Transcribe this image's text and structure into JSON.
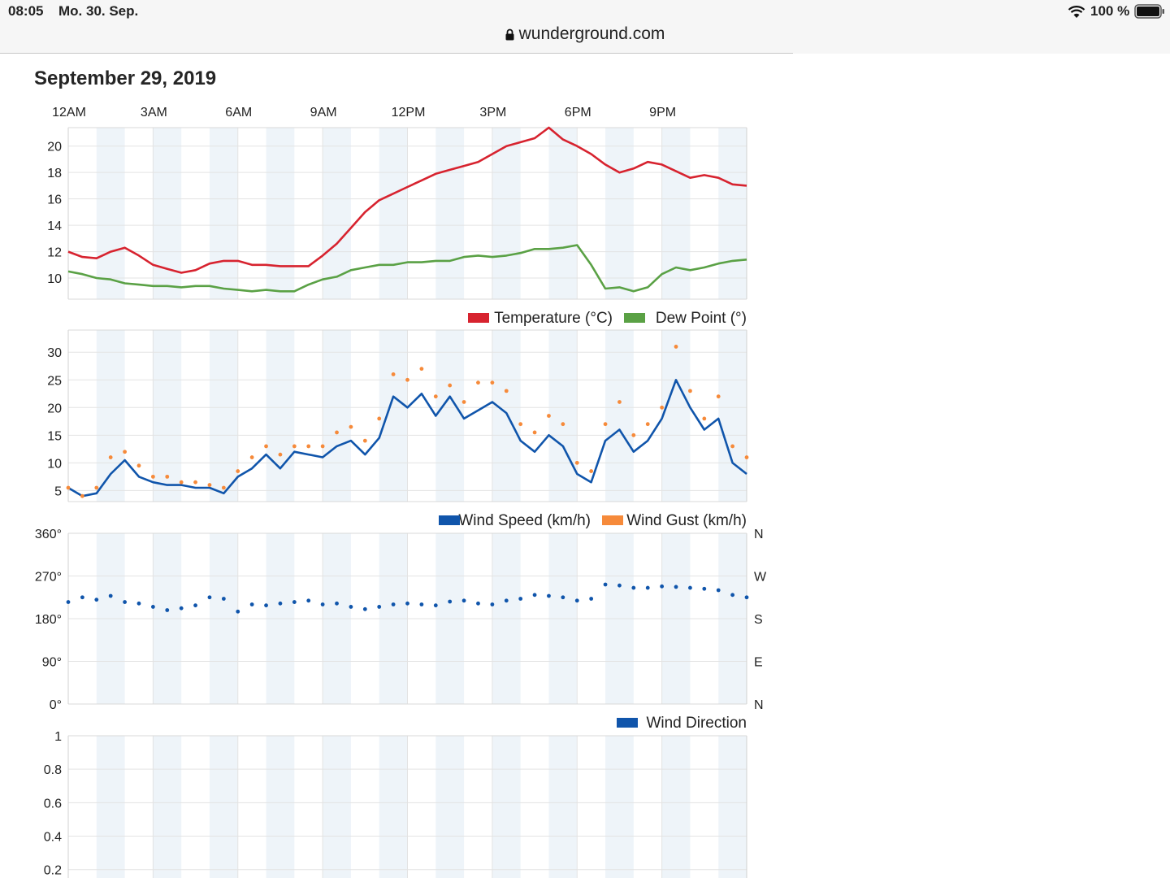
{
  "status_bar": {
    "time": "08:05",
    "date": "Mo. 30. Sep.",
    "battery": "100 %"
  },
  "browser": {
    "url": "wunderground.com"
  },
  "page": {
    "title": "September 29, 2019"
  },
  "time_axis": [
    "12AM",
    "3AM",
    "6AM",
    "9AM",
    "12PM",
    "3PM",
    "6PM",
    "9PM"
  ],
  "colors": {
    "temperature": "#d7232f",
    "dew_point": "#5aa145",
    "wind_speed": "#1055ab",
    "wind_gust": "#f68a3a",
    "wind_direction": "#1055ab",
    "band": "#eef4f9",
    "grid": "#e3e3e3"
  },
  "icons": [
    "lock-icon",
    "wifi-icon",
    "battery-icon"
  ],
  "chart_data": [
    {
      "type": "line",
      "ylim": [
        8.4,
        21.4
      ],
      "yticks": [
        "10",
        "12",
        "14",
        "16",
        "18",
        "20"
      ],
      "xlim": [
        0,
        24
      ],
      "series": [
        {
          "name": "Temperature (°C)",
          "color": "#d7232f",
          "x": [
            0,
            0.5,
            1,
            1.5,
            2,
            2.5,
            3,
            3.5,
            4,
            4.5,
            5,
            5.5,
            6,
            6.5,
            7,
            7.5,
            8,
            8.5,
            9,
            9.5,
            10,
            10.5,
            11,
            11.5,
            12,
            12.5,
            13,
            13.5,
            14,
            14.5,
            15,
            15.5,
            16,
            16.5,
            17,
            17.5,
            18,
            18.5,
            19,
            19.5,
            20,
            20.5,
            21,
            21.5,
            22,
            22.5,
            23,
            23.5,
            24
          ],
          "y": [
            12.0,
            11.6,
            11.5,
            12.0,
            12.3,
            11.7,
            11.0,
            10.7,
            10.4,
            10.6,
            11.1,
            11.3,
            11.3,
            11.0,
            11.0,
            10.9,
            10.9,
            10.9,
            11.7,
            12.6,
            13.8,
            15.0,
            15.9,
            16.4,
            16.9,
            17.4,
            17.9,
            18.2,
            18.5,
            18.8,
            19.4,
            20.0,
            20.3,
            20.6,
            21.4,
            20.5,
            20.0,
            19.4,
            18.6,
            18.0,
            18.3,
            18.8,
            18.6,
            18.1,
            17.6,
            17.8,
            17.6,
            17.1,
            17.0
          ]
        },
        {
          "name": "Dew Point (°)",
          "color": "#5aa145",
          "x": [
            0,
            0.5,
            1,
            1.5,
            2,
            2.5,
            3,
            3.5,
            4,
            4.5,
            5,
            5.5,
            6,
            6.5,
            7,
            7.5,
            8,
            8.5,
            9,
            9.5,
            10,
            10.5,
            11,
            11.5,
            12,
            12.5,
            13,
            13.5,
            14,
            14.5,
            15,
            15.5,
            16,
            16.5,
            17,
            17.5,
            18,
            18.5,
            19,
            19.5,
            20,
            20.5,
            21,
            21.5,
            22,
            22.5,
            23,
            23.5,
            24
          ],
          "y": [
            10.5,
            10.3,
            10.0,
            9.9,
            9.6,
            9.5,
            9.4,
            9.4,
            9.3,
            9.4,
            9.4,
            9.2,
            9.1,
            9.0,
            9.1,
            9.0,
            9.0,
            9.5,
            9.9,
            10.1,
            10.6,
            10.8,
            11.0,
            11.0,
            11.2,
            11.2,
            11.3,
            11.3,
            11.6,
            11.7,
            11.6,
            11.7,
            11.9,
            12.2,
            12.2,
            12.3,
            12.5,
            11.0,
            9.2,
            9.3,
            9.0,
            9.3,
            10.3,
            10.8,
            10.6,
            10.8,
            11.1,
            11.3,
            11.4
          ]
        }
      ]
    },
    {
      "type": "line",
      "ylim": [
        3,
        34
      ],
      "yticks": [
        "5",
        "10",
        "15",
        "20",
        "25",
        "30"
      ],
      "xlim": [
        0,
        24
      ],
      "series": [
        {
          "name": "Wind Speed (km/h)",
          "color": "#1055ab",
          "x": [
            0,
            0.5,
            1,
            1.5,
            2,
            2.5,
            3,
            3.5,
            4,
            4.5,
            5,
            5.5,
            6,
            6.5,
            7,
            7.5,
            8,
            8.5,
            9,
            9.5,
            10,
            10.5,
            11,
            11.5,
            12,
            12.5,
            13,
            13.5,
            14,
            14.5,
            15,
            15.5,
            16,
            16.5,
            17,
            17.5,
            18,
            18.5,
            19,
            19.5,
            20,
            20.5,
            21,
            21.5,
            22,
            22.5,
            23,
            23.5,
            24
          ],
          "y": [
            5.5,
            4.0,
            4.5,
            8.0,
            10.5,
            7.5,
            6.5,
            6.0,
            6.0,
            5.5,
            5.5,
            4.5,
            7.5,
            9.0,
            11.5,
            9.0,
            12.0,
            11.5,
            11.0,
            13.0,
            14.0,
            11.5,
            14.5,
            22.0,
            20.0,
            22.5,
            18.5,
            22.0,
            18.0,
            19.5,
            21.0,
            19.0,
            14.0,
            12.0,
            15.0,
            13.0,
            8.0,
            6.5,
            14.0,
            16.0,
            12.0,
            14.0,
            18.0,
            25.0,
            20.0,
            16.0,
            18.0,
            10.0,
            8.0
          ]
        },
        {
          "name": "Wind Gust (km/h)",
          "color": "#f68a3a",
          "x": [
            0,
            0.5,
            1,
            1.5,
            2,
            2.5,
            3,
            3.5,
            4,
            4.5,
            5,
            5.5,
            6,
            6.5,
            7,
            7.5,
            8,
            8.5,
            9,
            9.5,
            10,
            10.5,
            11,
            11.5,
            12,
            12.5,
            13,
            13.5,
            14,
            14.5,
            15,
            15.5,
            16,
            16.5,
            17,
            17.5,
            18,
            18.5,
            19,
            19.5,
            20,
            20.5,
            21,
            21.5,
            22,
            22.5,
            23,
            23.5,
            24
          ],
          "y": [
            5.5,
            4.0,
            5.5,
            11.0,
            12.0,
            9.5,
            7.5,
            7.5,
            6.5,
            6.5,
            6.0,
            5.5,
            8.5,
            11.0,
            13.0,
            11.5,
            13.0,
            13.0,
            13.0,
            15.5,
            16.5,
            14.0,
            18.0,
            26.0,
            25.0,
            27.0,
            22.0,
            24.0,
            21.0,
            24.5,
            24.5,
            23.0,
            17.0,
            15.5,
            18.5,
            17.0,
            10.0,
            8.5,
            17.0,
            21.0,
            15.0,
            17.0,
            20.0,
            31.0,
            23.0,
            18.0,
            22.0,
            13.0,
            11.0
          ]
        }
      ]
    },
    {
      "type": "scatter",
      "ylim": [
        0,
        360
      ],
      "yticks": [
        "0°",
        "90°",
        "180°",
        "270°",
        "360°"
      ],
      "right_labels": [
        "N",
        "E",
        "S",
        "W",
        "N"
      ],
      "xlim": [
        0,
        24
      ],
      "series": [
        {
          "name": "Wind Direction",
          "color": "#1055ab",
          "x": [
            0,
            0.5,
            1,
            1.5,
            2,
            2.5,
            3,
            3.5,
            4,
            4.5,
            5,
            5.5,
            6,
            6.5,
            7,
            7.5,
            8,
            8.5,
            9,
            9.5,
            10,
            10.5,
            11,
            11.5,
            12,
            12.5,
            13,
            13.5,
            14,
            14.5,
            15,
            15.5,
            16,
            16.5,
            17,
            17.5,
            18,
            18.5,
            19,
            19.5,
            20,
            20.5,
            21,
            21.5,
            22,
            22.5,
            23,
            23.5,
            24
          ],
          "y": [
            215,
            225,
            220,
            228,
            215,
            212,
            205,
            198,
            202,
            208,
            225,
            222,
            195,
            210,
            208,
            212,
            215,
            218,
            210,
            212,
            205,
            200,
            205,
            210,
            212,
            210,
            208,
            216,
            218,
            212,
            210,
            218,
            222,
            230,
            228,
            225,
            218,
            222,
            252,
            250,
            245,
            245,
            248,
            247,
            245,
            243,
            240,
            230,
            225
          ]
        }
      ]
    },
    {
      "type": "line",
      "ylim": [
        0.15,
        1
      ],
      "yticks": [
        "0.2",
        "0.4",
        "0.6",
        "0.8",
        "1"
      ],
      "xlim": [
        0,
        24
      ],
      "series": []
    }
  ],
  "legends": {
    "chart1": [
      {
        "label": "Temperature (°C)",
        "color": "#d7232f"
      },
      {
        "label": "Dew Point (°)",
        "color": "#5aa145"
      }
    ],
    "chart2": [
      {
        "label": "Wind Speed (km/h)",
        "color": "#1055ab"
      },
      {
        "label": "Wind Gust (km/h)",
        "color": "#f68a3a"
      }
    ],
    "chart3": [
      {
        "label": "Wind Direction",
        "color": "#1055ab"
      }
    ]
  }
}
